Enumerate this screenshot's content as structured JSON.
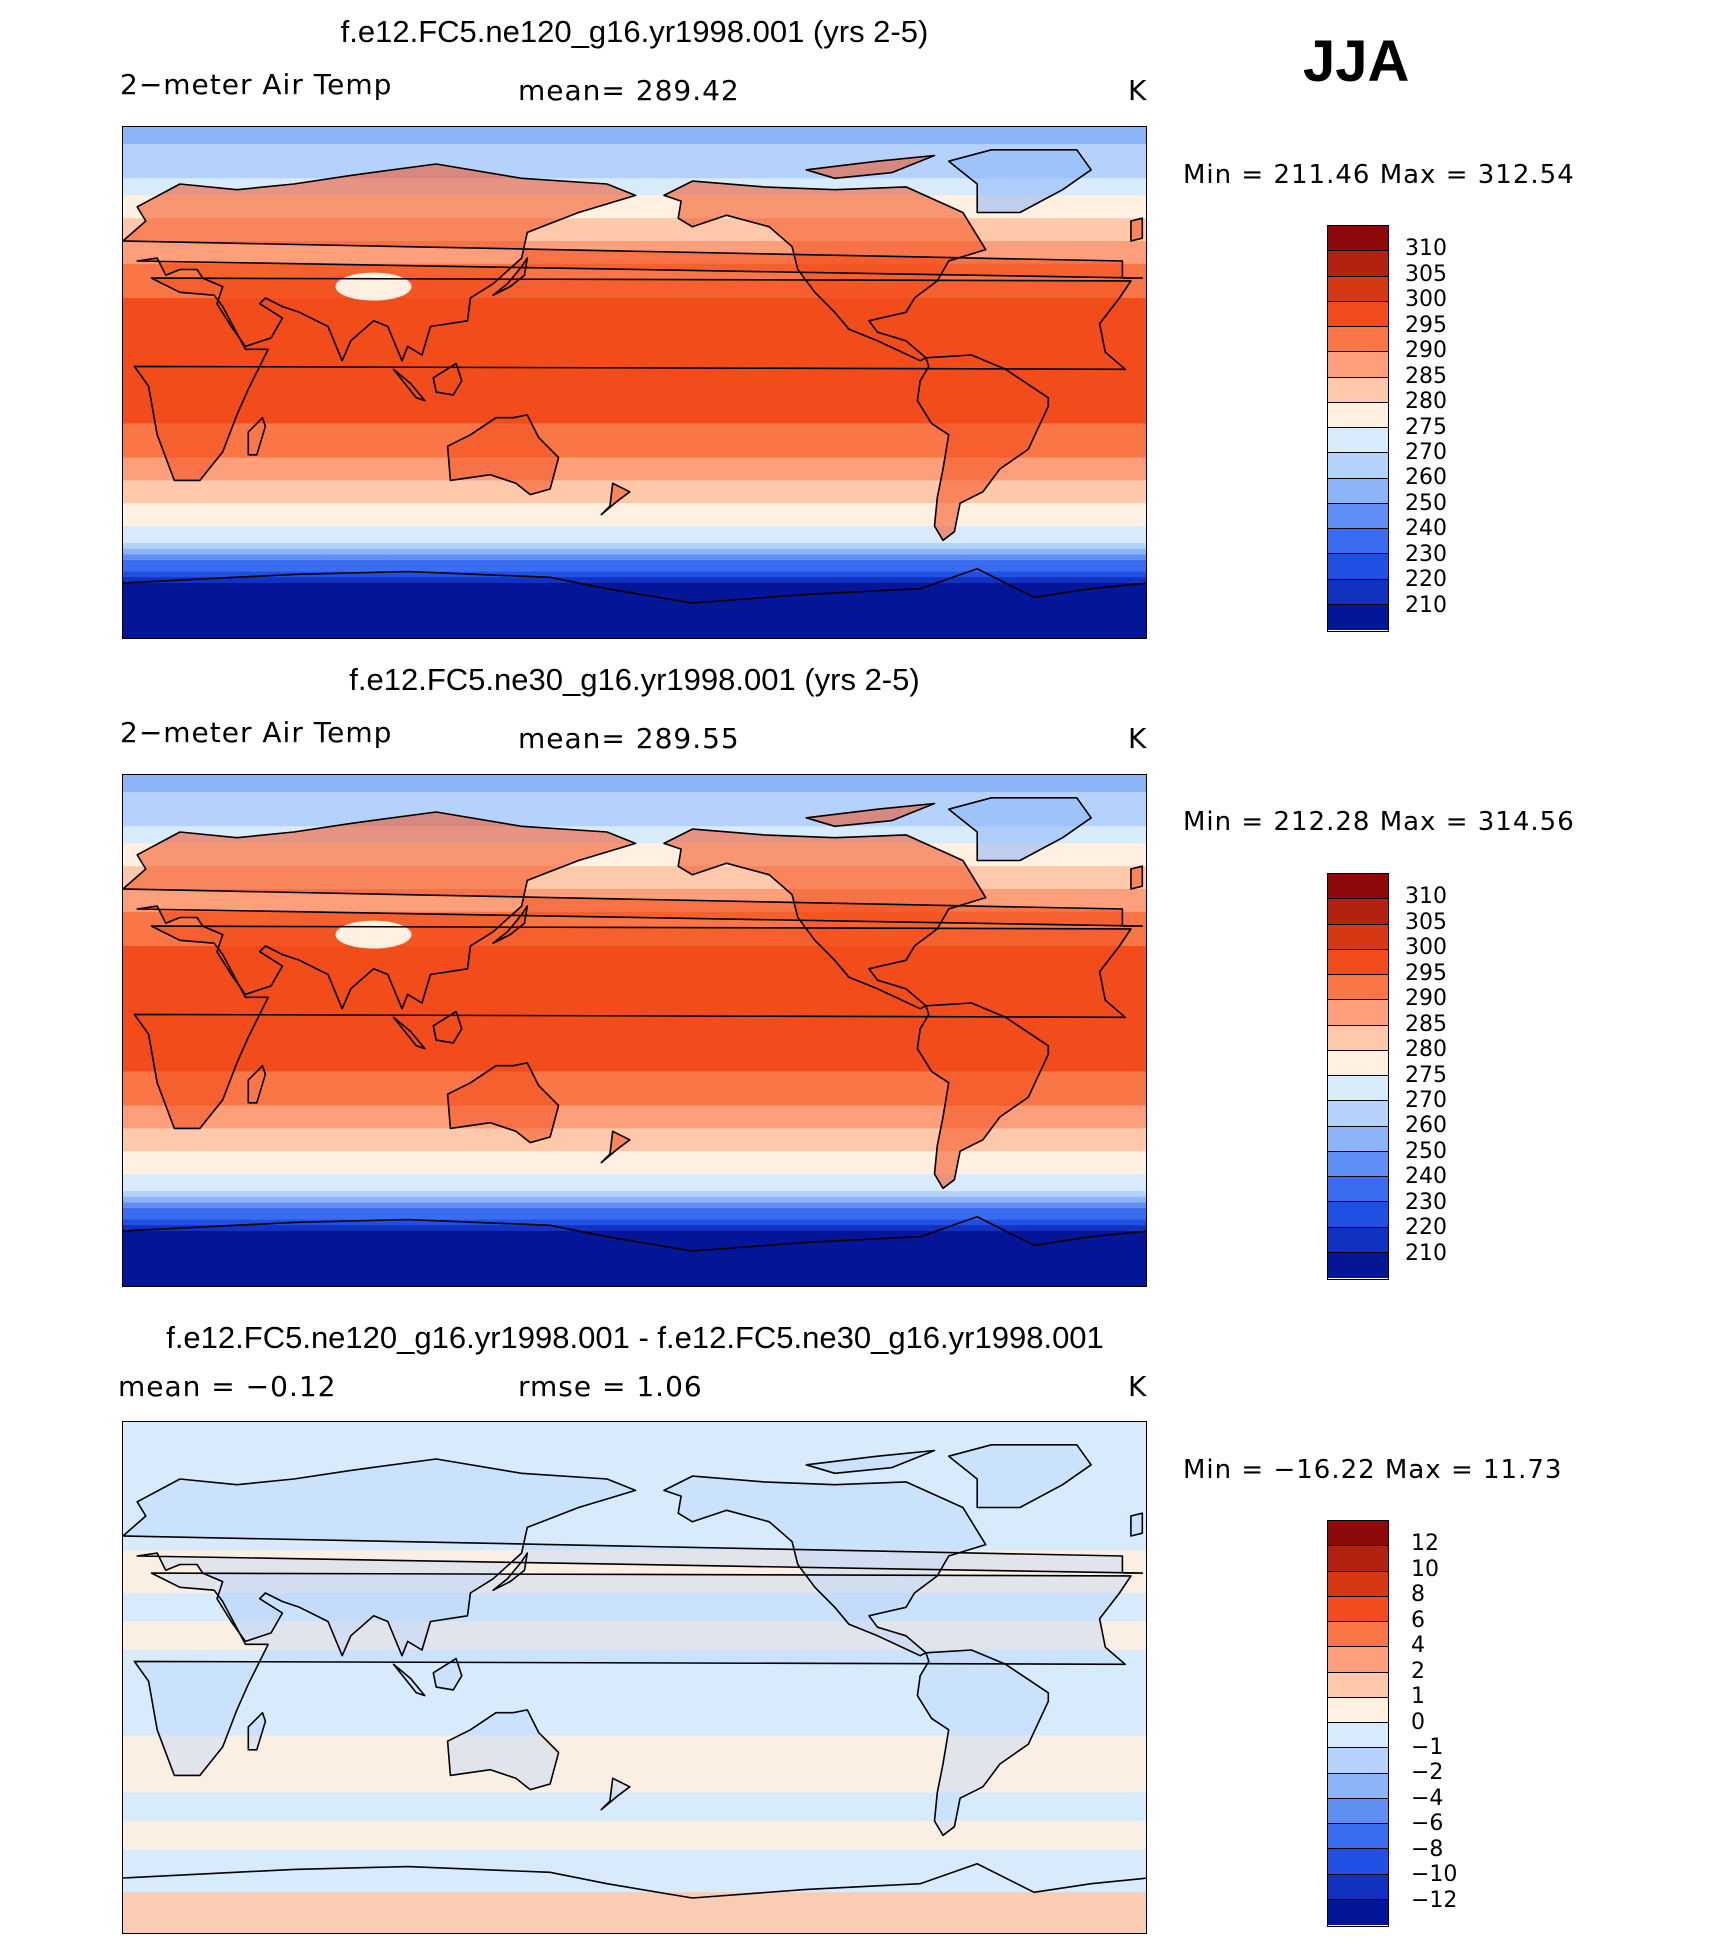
{
  "season": "JJA",
  "panels": [
    {
      "title": "f.e12.FC5.ne120_g16.yr1998.001 (yrs 2-5)",
      "left_label": "2−meter Air Temp",
      "center_label": "mean=  289.42",
      "units": "K",
      "minmax": "Min  =  211.46  Max  =  312.54",
      "kind": "temp"
    },
    {
      "title": "f.e12.FC5.ne30_g16.yr1998.001 (yrs 2-5)",
      "left_label": "2−meter Air Temp",
      "center_label": "mean=  289.55",
      "units": "K",
      "minmax": "Min  =  212.28  Max  =  314.56",
      "kind": "temp"
    },
    {
      "title": "f.e12.FC5.ne120_g16.yr1998.001 - f.e12.FC5.ne30_g16.yr1998.001",
      "left_label": "mean  =    −0.12",
      "center_label": "rmse  =      1.06",
      "units": "K",
      "minmax": "Min  =  −16.22  Max  =    11.73",
      "kind": "diff"
    }
  ],
  "colorbars": {
    "temp": {
      "colors": [
        "#8c0a0a",
        "#b3220f",
        "#d63813",
        "#f24c1c",
        "#fb7646",
        "#fc9f7a",
        "#fec9ab",
        "#fff0e1",
        "#d8ebfc",
        "#b4d2fb",
        "#8cb5f9",
        "#5f8ff5",
        "#3a6cf1",
        "#1f4fe3",
        "#1131bf",
        "#051598"
      ],
      "labels": [
        "310",
        "305",
        "300",
        "295",
        "290",
        "285",
        "280",
        "275",
        "270",
        "260",
        "250",
        "240",
        "230",
        "220",
        "210"
      ]
    },
    "diff": {
      "colors": [
        "#8c0a0a",
        "#b3220f",
        "#d63813",
        "#f24c1c",
        "#fb7646",
        "#fc9f7a",
        "#fec9ab",
        "#fff0e1",
        "#d8ebfc",
        "#b4d2fb",
        "#8cb5f9",
        "#5f8ff5",
        "#3a6cf1",
        "#1f4fe3",
        "#1131bf",
        "#051598"
      ],
      "labels": [
        "12",
        "10",
        "8",
        "6",
        "4",
        "2",
        "1",
        "0",
        "−1",
        "−2",
        "−4",
        "−6",
        "−8",
        "−10",
        "−12"
      ]
    }
  }
}
